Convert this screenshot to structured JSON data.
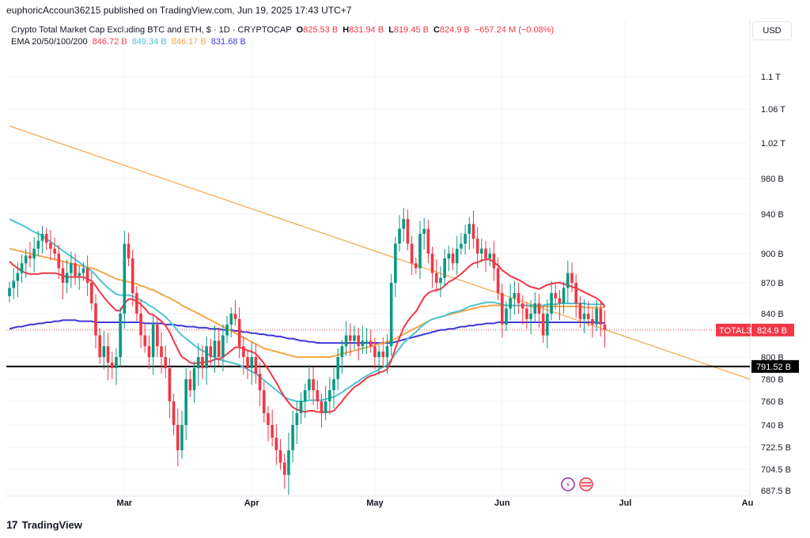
{
  "credit": "euphoricAccoun36215 published on TradingView.com, Jun 19, 2025 17:43 UTC+7",
  "currency_button": "USD",
  "brand": "TradingView",
  "brand_mark": "17",
  "legend": {
    "title": "Crypto Total Market Cap Excluding BTC and ETH, $ · 1D · CRYPTOCAP",
    "o_label": "O",
    "o_value": "825.53 B",
    "h_label": "H",
    "h_value": "831.94 B",
    "l_label": "L",
    "l_value": "819.45 B",
    "c_label": "C",
    "c_value": "824.9 B",
    "change": "−657.24 M (−0.08%)",
    "ema_label": "EMA 20/50/100/200",
    "ema20": "846.72 B",
    "ema50": "849.34 B",
    "ema100": "846.17 B",
    "ema200": "831.68 B"
  },
  "colors": {
    "up": "#089981",
    "down": "#f23645",
    "ema20": "#f23645",
    "ema50": "#4dc4d0",
    "ema100": "#f7a44a",
    "ema200": "#3f38d6",
    "trendline": "#f7a44a",
    "support": "#000000"
  },
  "chart_data": {
    "type": "candlestick",
    "title": "Crypto Total Market Cap Excluding BTC and ETH",
    "symbol": "TOTAL3",
    "interval": "1D",
    "last_price_label": "TOTAL3",
    "last_price": 824.9,
    "last_price_text": "824.9 B",
    "support_level": 791.52,
    "support_text": "791.52 B",
    "y_ticks": [
      {
        "label": "1.1 T",
        "v": 1100
      },
      {
        "label": "1.06 T",
        "v": 1060
      },
      {
        "label": "1.02 T",
        "v": 1020
      },
      {
        "label": "980 B",
        "v": 980
      },
      {
        "label": "940 B",
        "v": 940
      },
      {
        "label": "900 B",
        "v": 900
      },
      {
        "label": "870 B",
        "v": 870
      },
      {
        "label": "840 B",
        "v": 840
      },
      {
        "label": "800 B",
        "v": 800
      },
      {
        "label": "780 B",
        "v": 780
      },
      {
        "label": "760 B",
        "v": 760
      },
      {
        "label": "740 B",
        "v": 740
      },
      {
        "label": "722.5 B",
        "v": 722.5
      },
      {
        "label": "704.5 B",
        "v": 704.5
      },
      {
        "label": "687.5 B",
        "v": 687.5
      }
    ],
    "x_ticks": [
      {
        "label": "Mar",
        "idx": 28
      },
      {
        "label": "Apr",
        "idx": 59
      },
      {
        "label": "May",
        "idx": 89
      },
      {
        "label": "Jun",
        "idx": 120
      },
      {
        "label": "Jul",
        "idx": 150
      },
      {
        "label": "Au",
        "idx": 181
      }
    ],
    "trendline": {
      "from": {
        "idx": 0,
        "v": 1040
      },
      "to": {
        "idx": 181,
        "v": 780
      }
    },
    "close": [
      865,
      872,
      880,
      890,
      898,
      895,
      905,
      913,
      920,
      911,
      905,
      900,
      885,
      870,
      880,
      890,
      877,
      880,
      885,
      870,
      850,
      820,
      800,
      810,
      795,
      790,
      800,
      840,
      910,
      895,
      860,
      840,
      820,
      810,
      800,
      830,
      810,
      800,
      790,
      760,
      740,
      720,
      740,
      780,
      770,
      790,
      800,
      790,
      810,
      800,
      815,
      800,
      820,
      830,
      840,
      835,
      810,
      800,
      790,
      800,
      785,
      770,
      750,
      740,
      730,
      720,
      710,
      700,
      720,
      740,
      750,
      760,
      770,
      780,
      770,
      760,
      750,
      760,
      770,
      780,
      800,
      810,
      820,
      815,
      820,
      810,
      815,
      815,
      810,
      800,
      805,
      800,
      810,
      870,
      910,
      925,
      935,
      910,
      890,
      885,
      920,
      925,
      900,
      880,
      870,
      875,
      895,
      900,
      890,
      905,
      910,
      920,
      930,
      915,
      900,
      905,
      895,
      900,
      885,
      860,
      830,
      845,
      855,
      860,
      850,
      845,
      835,
      840,
      850,
      840,
      820,
      840,
      860,
      855,
      850,
      865,
      880,
      870,
      850,
      835,
      840,
      835,
      830,
      845,
      830,
      824.9
    ],
    "ema20": [
      892,
      888,
      885,
      882,
      880,
      879,
      879,
      879,
      880,
      880,
      880,
      880,
      879,
      877,
      876,
      876,
      876,
      876,
      876,
      874,
      872,
      867,
      861,
      856,
      851,
      847,
      843,
      843,
      850,
      854,
      854,
      852,
      849,
      845,
      840,
      839,
      836,
      833,
      829,
      823,
      815,
      807,
      800,
      798,
      795,
      794,
      795,
      795,
      796,
      796,
      798,
      798,
      800,
      803,
      806,
      809,
      809,
      808,
      806,
      805,
      803,
      799,
      794,
      789,
      783,
      777,
      770,
      764,
      759,
      755,
      753,
      752,
      751,
      752,
      752,
      751,
      751,
      751,
      751,
      752,
      756,
      760,
      765,
      769,
      773,
      775,
      778,
      781,
      783,
      784,
      786,
      787,
      789,
      797,
      808,
      818,
      827,
      833,
      838,
      842,
      849,
      856,
      860,
      862,
      863,
      864,
      867,
      871,
      873,
      876,
      879,
      883,
      887,
      890,
      891,
      893,
      894,
      894,
      891,
      888,
      883,
      880,
      877,
      875,
      873,
      871,
      868,
      866,
      865,
      864,
      866,
      868,
      869,
      870,
      870,
      869,
      868,
      866,
      865,
      863,
      861,
      859,
      857,
      855,
      852,
      846.7
    ],
    "ema50": [
      935,
      933,
      931,
      929,
      927,
      924,
      922,
      920,
      918,
      915,
      912,
      909,
      906,
      903,
      900,
      897,
      894,
      891,
      888,
      885,
      882,
      878,
      873,
      869,
      865,
      862,
      859,
      858,
      858,
      858,
      857,
      855,
      853,
      851,
      848,
      846,
      843,
      840,
      837,
      833,
      829,
      824,
      820,
      817,
      814,
      811,
      808,
      806,
      804,
      801,
      800,
      798,
      797,
      796,
      795,
      794,
      793,
      791,
      789,
      787,
      785,
      782,
      779,
      776,
      773,
      770,
      767,
      764,
      762,
      761,
      760,
      760,
      760,
      761,
      761,
      761,
      761,
      762,
      763,
      764,
      766,
      768,
      771,
      773,
      776,
      778,
      781,
      783,
      785,
      787,
      789,
      791,
      793,
      798,
      803,
      808,
      813,
      817,
      820,
      823,
      827,
      830,
      833,
      835,
      836,
      837,
      838,
      840,
      841,
      842,
      843,
      845,
      847,
      848,
      849,
      850,
      851,
      851,
      851,
      850,
      849,
      848,
      848,
      848,
      848,
      848,
      848,
      848,
      848,
      848,
      848,
      849,
      849,
      849,
      850,
      850,
      850,
      850,
      850,
      850,
      850,
      849,
      849,
      849,
      849,
      849.3
    ],
    "ema100": [
      905,
      904,
      903,
      902,
      901,
      900,
      899,
      898,
      897,
      896,
      895,
      894,
      893,
      892,
      891,
      890,
      889,
      888,
      887,
      886,
      885,
      884,
      882,
      880,
      878,
      876,
      874,
      873,
      872,
      871,
      870,
      869,
      867,
      866,
      864,
      863,
      861,
      859,
      857,
      855,
      853,
      851,
      848,
      846,
      844,
      842,
      840,
      838,
      836,
      834,
      832,
      830,
      828,
      826,
      824,
      822,
      820,
      818,
      816,
      814,
      812,
      810,
      808,
      807,
      806,
      805,
      804,
      803,
      802,
      801,
      800,
      800,
      800,
      800,
      800,
      800,
      800,
      800,
      800,
      801,
      802,
      803,
      804,
      805,
      806,
      807,
      808,
      809,
      810,
      811,
      812,
      813,
      814,
      815,
      817,
      819,
      821,
      823,
      825,
      827,
      829,
      831,
      833,
      835,
      836,
      837,
      838,
      839,
      840,
      841,
      842,
      843,
      844,
      845,
      846,
      847,
      847,
      848,
      848,
      848,
      848,
      848,
      848,
      848,
      848,
      848,
      848,
      847,
      847,
      847,
      847,
      847,
      847,
      847,
      847,
      847,
      847,
      847,
      847,
      847,
      846,
      846,
      846,
      846,
      846,
      846.2
    ],
    "ema200": [
      826,
      827,
      828,
      828,
      829,
      830,
      830,
      831,
      831,
      832,
      832,
      833,
      833,
      834,
      834,
      834,
      834,
      833,
      833,
      833,
      833,
      832,
      832,
      832,
      832,
      832,
      832,
      832,
      832,
      832,
      832,
      832,
      832,
      831,
      831,
      831,
      831,
      831,
      830,
      830,
      830,
      829,
      829,
      828,
      828,
      828,
      827,
      827,
      827,
      826,
      826,
      826,
      825,
      825,
      825,
      824,
      824,
      823,
      823,
      822,
      822,
      821,
      821,
      820,
      820,
      819,
      819,
      818,
      817,
      817,
      816,
      815,
      815,
      814,
      814,
      813,
      813,
      813,
      813,
      813,
      813,
      813,
      813,
      813,
      813,
      813,
      813,
      813,
      813,
      813,
      813,
      813,
      813,
      813,
      814,
      815,
      816,
      817,
      818,
      819,
      820,
      821,
      822,
      823,
      824,
      825,
      825,
      826,
      826,
      827,
      828,
      828,
      829,
      829,
      830,
      830,
      831,
      831,
      831,
      832,
      832,
      832,
      832,
      832,
      832,
      832,
      832,
      832,
      832,
      832,
      832,
      832,
      832,
      832,
      832,
      832,
      832,
      832,
      832,
      832,
      832,
      832,
      832,
      832,
      831,
      831.7
    ]
  }
}
